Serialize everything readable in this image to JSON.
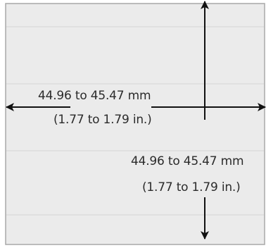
{
  "panel_cutout": {
    "horizontal_dimension": {
      "mm_label": "44.96 to 45.47 mm",
      "inch_label": "(1.77 to 1.79 in.)"
    },
    "vertical_dimension": {
      "mm_label": "44.96 to 45.47 mm",
      "inch_label": "(1.77 to 1.79 in.)"
    },
    "colors": {
      "panel_fill": "#ebebeb",
      "panel_border": "#a8a8a8",
      "guide_lines": "#d6d6d6",
      "arrow": "#111111",
      "text": "#2b2b2b"
    }
  }
}
